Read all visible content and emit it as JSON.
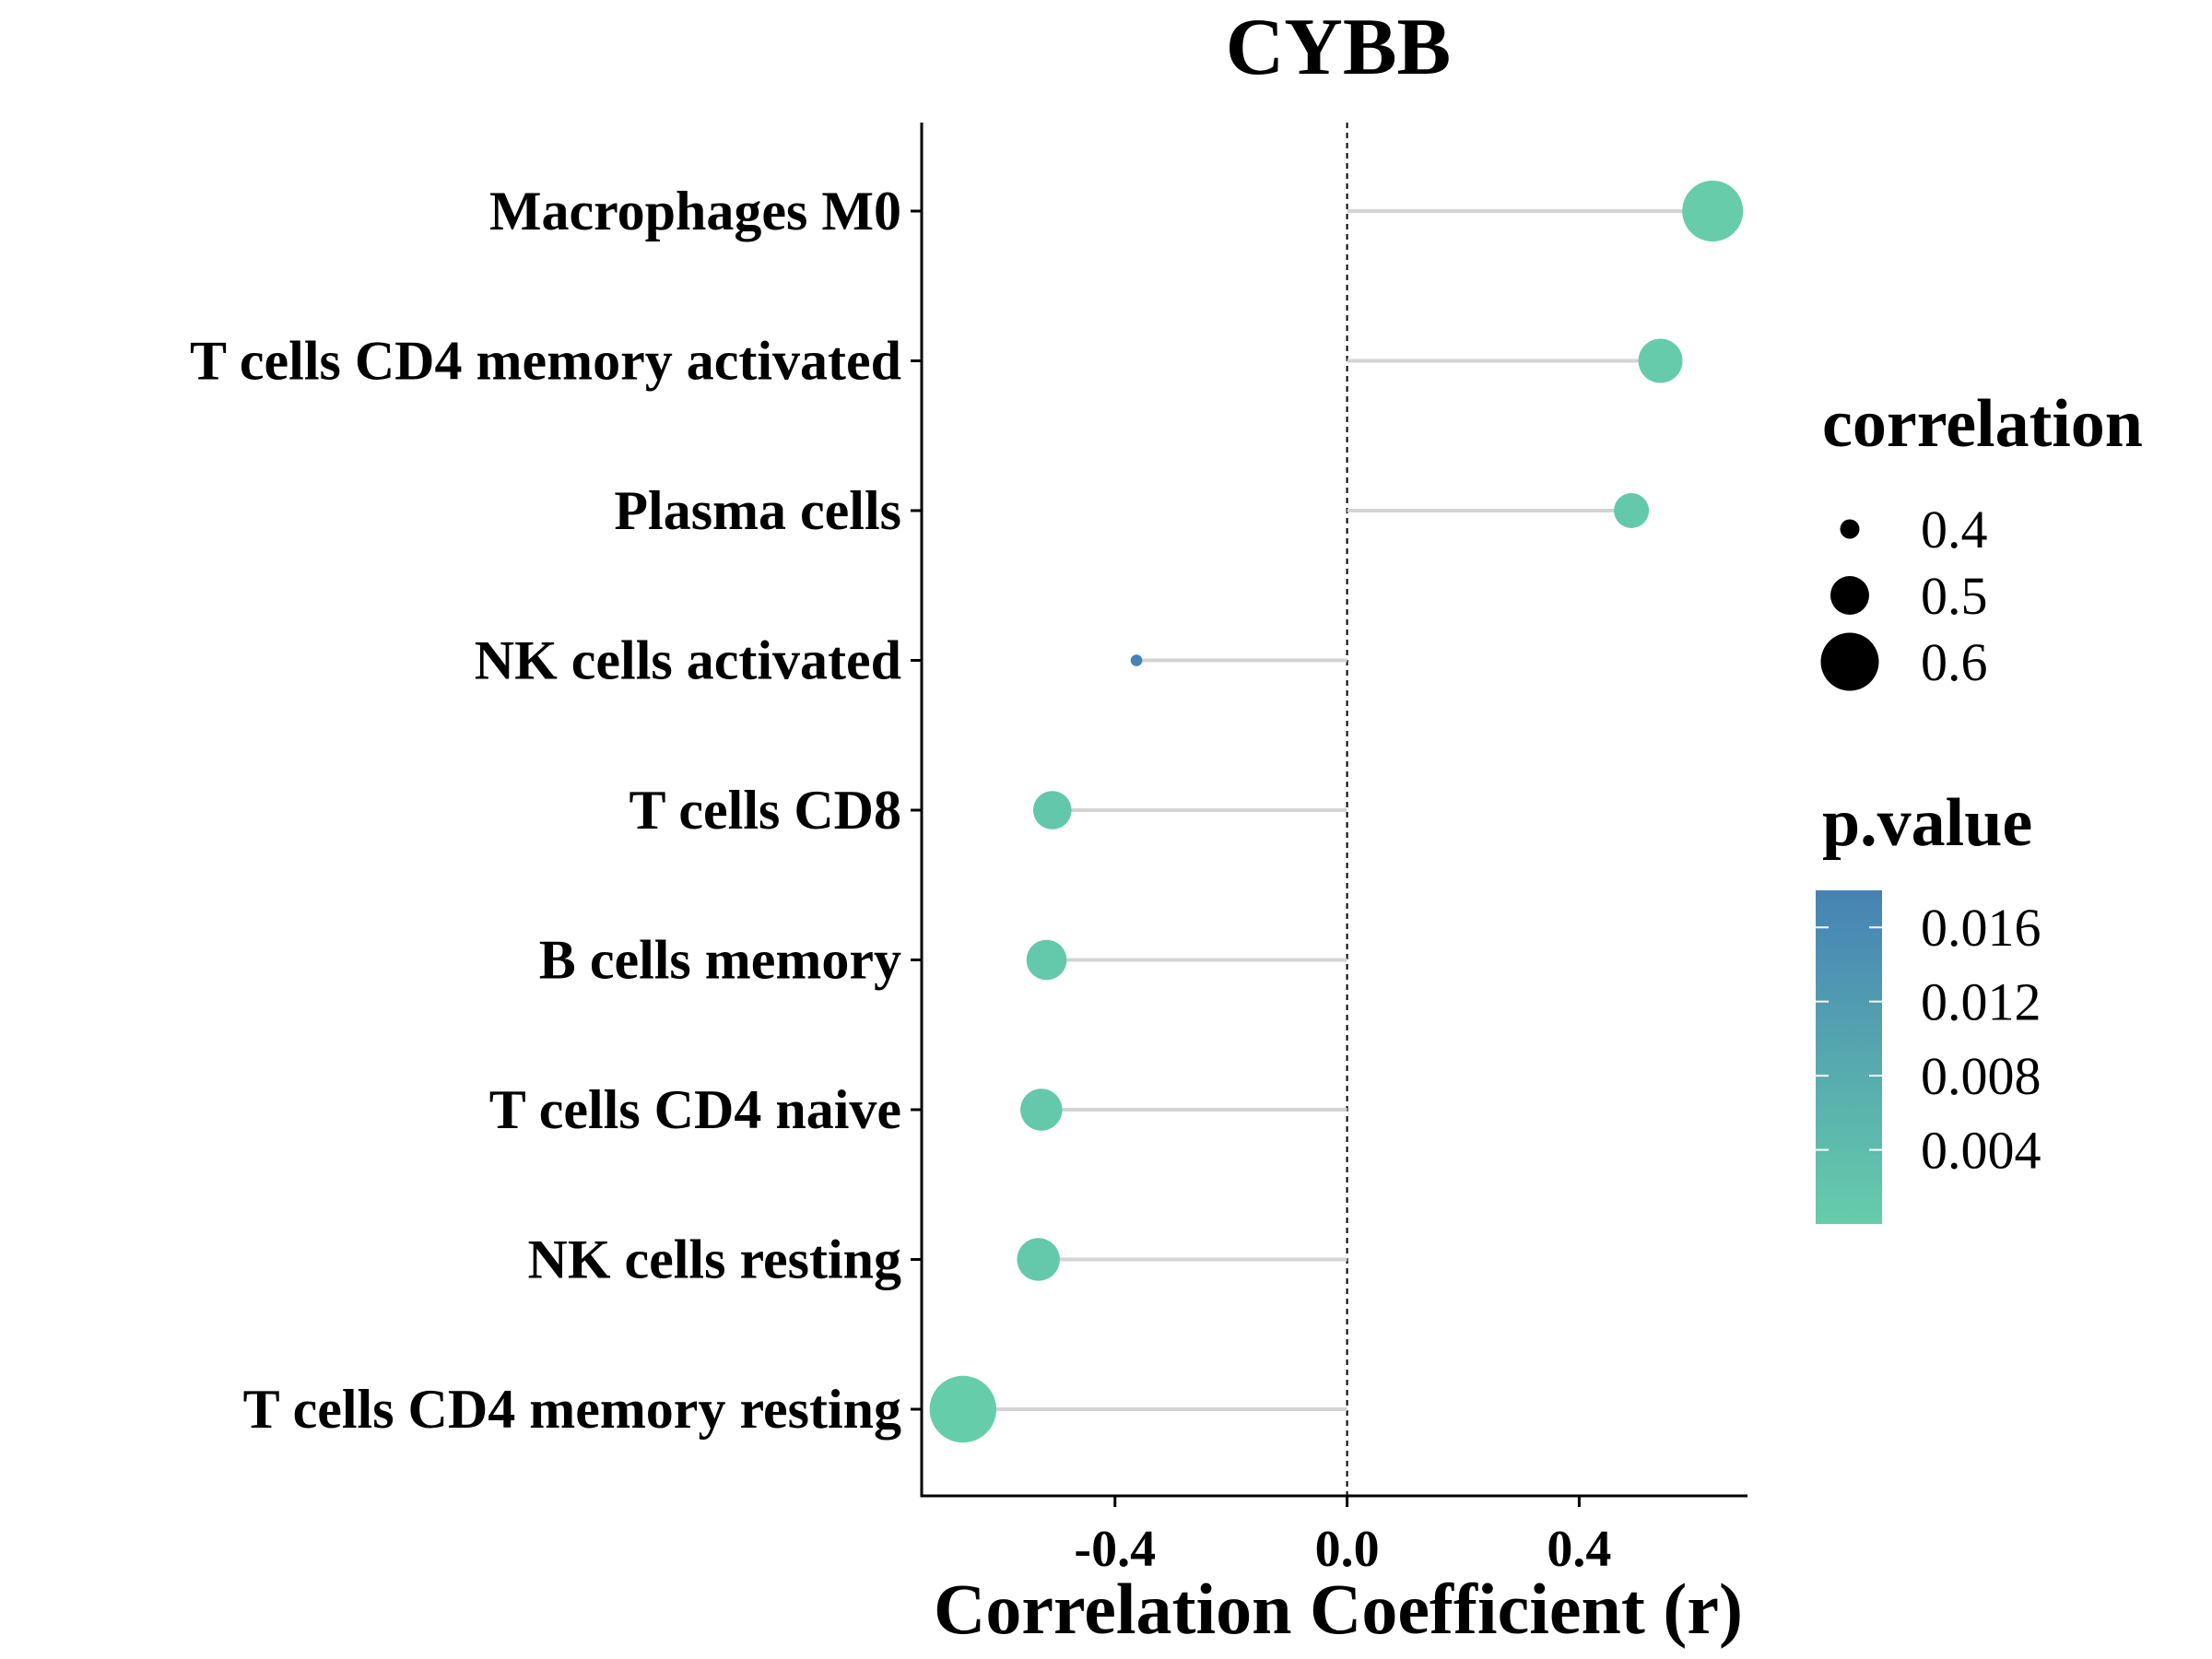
{
  "chart_data": {
    "type": "lollipop",
    "title": "CYBB",
    "xlabel": "Correlation Coefficient (r)",
    "ylabel": "",
    "xlim": [
      -0.73,
      0.69
    ],
    "xticks": [
      -0.4,
      0.0,
      0.4
    ],
    "xtick_labels": [
      "-0.4",
      "0.0",
      "0.4"
    ],
    "reference_line": 0.0,
    "grid": false,
    "categories": [
      "Macrophages M0",
      "T cells CD4 memory activated",
      "Plasma cells",
      "NK cells activated",
      "T cells CD8",
      "B cells memory",
      "T cells CD4 naive",
      "NK cells resting",
      "T cells CD4 memory resting"
    ],
    "values": [
      0.63,
      0.54,
      0.49,
      -0.363,
      -0.508,
      -0.518,
      -0.527,
      -0.532,
      -0.662
    ],
    "p_values": [
      0.0002,
      0.0006,
      0.001,
      0.018,
      0.0015,
      0.0013,
      0.0012,
      0.0011,
      0.0001
    ],
    "size_legend": {
      "title": "correlation",
      "breaks": [
        0.4,
        0.5,
        0.6
      ],
      "labels": [
        "0.4",
        "0.5",
        "0.6"
      ]
    },
    "color_legend": {
      "title": "p.value",
      "breaks": [
        0.016,
        0.012,
        0.008,
        0.004
      ],
      "labels": [
        "0.016",
        "0.012",
        "0.008",
        "0.004"
      ],
      "range": [
        0.0,
        0.018
      ],
      "low_color": "#66CDAA",
      "high_color": "#4682B4"
    },
    "colors": {
      "stem": "#d3d3d3",
      "axis": "#000000",
      "reference": "#000000"
    }
  }
}
